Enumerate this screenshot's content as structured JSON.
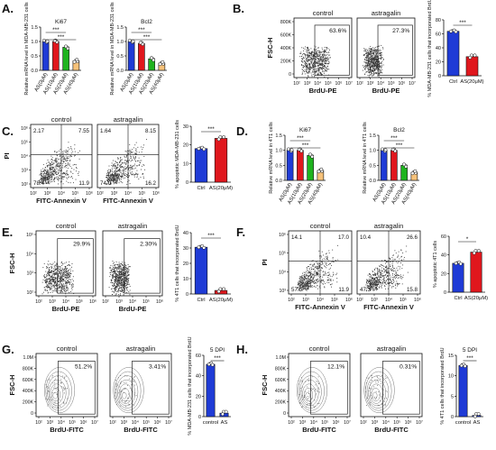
{
  "colors": {
    "blue": "#1f3bd6",
    "red": "#e0171d",
    "green": "#1fb31f",
    "orange": "#f7c27a",
    "black": "#111111",
    "box": "#555555"
  },
  "panels": {
    "A": {
      "letter": "A.",
      "charts": [
        {
          "type": "bar",
          "title": "Ki67",
          "ylabel": "Relative mRNA level in MDA-MB-231 cells",
          "ylim": [
            0,
            1.5
          ],
          "yticks": [
            "0.0",
            "0.5",
            "1.0",
            "1.5"
          ],
          "categories": [
            "AS(0μM)",
            "AS(10μM)",
            "AS(20μM)",
            "AS(40μM)"
          ],
          "values": [
            1.0,
            1.0,
            0.8,
            0.33
          ],
          "sig": [
            "***",
            "***"
          ]
        },
        {
          "type": "bar",
          "title": "Bcl2",
          "ylabel": "Relative mRNA level in MDA-MB-231 cells",
          "ylim": [
            0,
            1.5
          ],
          "yticks": [
            "0.0",
            "0.5",
            "1.0",
            "1.5"
          ],
          "categories": [
            "AS(0μM)",
            "AS(10μM)",
            "AS(20μM)",
            "AS(40μM)"
          ],
          "values": [
            1.0,
            0.93,
            0.4,
            0.25
          ],
          "sig": [
            "***",
            "***"
          ]
        }
      ]
    },
    "B": {
      "letter": "B.",
      "flow": {
        "ylabel": "FSC-H",
        "xlabel": "BrdU-PE",
        "yticks": [
          "800K",
          "600K",
          "400K",
          "200K",
          "0"
        ],
        "xticks": [
          "10²",
          "10³",
          "10⁴",
          "10⁵",
          "10⁶",
          "10⁷"
        ],
        "plots": [
          {
            "title": "control",
            "pct": "63.6%"
          },
          {
            "title": "astragalin",
            "pct": "27.3%"
          }
        ]
      },
      "bar": {
        "type": "bar",
        "ylabel": "% MDA-MB-231 cells that incorporated BrdU",
        "ylim": [
          0,
          80
        ],
        "yticks": [
          "0",
          "20",
          "40",
          "60",
          "80"
        ],
        "categories": [
          "Ctrl",
          "AS(20μM)"
        ],
        "values": [
          63.6,
          27.3
        ],
        "sig": [
          "***"
        ]
      }
    },
    "C": {
      "letter": "C.",
      "flow": {
        "ylabel": "PI",
        "xlabel": "FITC-Annexin V",
        "yticks": [
          "10⁶",
          "10⁵",
          "10⁴",
          "10³",
          "10²"
        ],
        "xticks": [
          "10²",
          "10³",
          "10⁴",
          "10⁵",
          "10⁶"
        ],
        "plots": [
          {
            "title": "control",
            "q": [
              "2.17",
              "7.55",
              "78.4",
              "11.9"
            ]
          },
          {
            "title": "astragalin",
            "q": [
              "1.64",
              "8.15",
              "74.0",
              "16.2"
            ]
          }
        ]
      },
      "bar": {
        "type": "bar",
        "ylabel": "% apoptotic MDA-MB-231 cells",
        "ylim": [
          0,
          30
        ],
        "yticks": [
          "0",
          "10",
          "20",
          "30"
        ],
        "categories": [
          "Ctrl",
          "AS(20μM)"
        ],
        "values": [
          18.0,
          23.5
        ],
        "sig": [
          "***"
        ]
      }
    },
    "D": {
      "letter": "D.",
      "charts": [
        {
          "type": "bar",
          "title": "Ki67",
          "ylabel": "Relative mRNA level in 4T1 cells",
          "ylim": [
            0,
            1.5
          ],
          "yticks": [
            "0.0",
            "0.5",
            "1.0",
            "1.5"
          ],
          "categories": [
            "AS(0μM)",
            "AS(10μM)",
            "AS(20μM)",
            "AS(40μM)"
          ],
          "values": [
            1.0,
            1.0,
            0.83,
            0.33
          ],
          "sig": [
            "***",
            "***"
          ]
        },
        {
          "type": "bar",
          "title": "Bcl2",
          "ylabel": "Relative mRNA level in 4T1 cells",
          "ylim": [
            0,
            1.5
          ],
          "yticks": [
            "0.0",
            "0.5",
            "1.0",
            "1.5"
          ],
          "categories": [
            "AS(0μM)",
            "AS(10μM)",
            "AS(20μM)",
            "AS(40μM)"
          ],
          "values": [
            1.0,
            1.0,
            0.5,
            0.27
          ],
          "sig": [
            "***",
            "***"
          ]
        }
      ]
    },
    "E": {
      "letter": "E.",
      "flow": {
        "ylabel": "FSC-H",
        "xlabel": "BrdU-PE",
        "yticks": [
          "10⁵",
          "10⁴",
          "10³",
          "10²"
        ],
        "xticks": [
          "10²",
          "10³",
          "10⁴",
          "10⁵",
          "10⁶"
        ],
        "plots": [
          {
            "title": "control",
            "pct": "29.9%"
          },
          {
            "title": "astragalin",
            "pct": "2.30%"
          }
        ]
      },
      "bar": {
        "type": "bar",
        "ylabel": "% 4T1 cells that incorporated BrdU",
        "ylim": [
          0,
          40
        ],
        "yticks": [
          "0",
          "10",
          "20",
          "30",
          "40"
        ],
        "categories": [
          "Ctrl",
          "AS(20μM)"
        ],
        "values": [
          30.5,
          2.3
        ],
        "sig": [
          "***"
        ]
      }
    },
    "F": {
      "letter": "F.",
      "flow": {
        "ylabel": "PI",
        "xlabel": "FITC-Annexin V",
        "yticks": [
          "10⁶",
          "10⁵",
          "10⁴",
          "10³"
        ],
        "xticks": [
          "10²",
          "10³",
          "10⁴",
          "10⁵",
          "10⁶"
        ],
        "plots": [
          {
            "title": "control",
            "q": [
              "14.1",
              "17.0",
              "57.0",
              "11.9"
            ]
          },
          {
            "title": "astragalin",
            "q": [
              "10.4",
              "26.6",
              "47.3",
              "15.8"
            ]
          }
        ]
      },
      "bar": {
        "type": "bar",
        "ylabel": "% apoptotic 4T1 cells",
        "ylim": [
          0,
          60
        ],
        "yticks": [
          "0",
          "20",
          "40",
          "60"
        ],
        "categories": [
          "Ctrl",
          "AS(20μM)"
        ],
        "values": [
          31.0,
          43.0
        ],
        "sig": [
          "*"
        ]
      }
    },
    "G": {
      "letter": "G.",
      "flow": {
        "ylabel": "FSC-H",
        "xlabel": "BrdU-FITC",
        "yticks": [
          "1.0M",
          "800K",
          "600K",
          "400K",
          "200K",
          "0"
        ],
        "xticks": [
          "10²",
          "10³",
          "10⁴",
          "10⁵",
          "10⁶",
          "10⁷"
        ],
        "plots": [
          {
            "title": "control",
            "pct": "51.2%"
          },
          {
            "title": "astragalin",
            "pct": "3.41%"
          }
        ]
      },
      "bar": {
        "type": "bar",
        "title": "5 DPI",
        "ylabel": "% MDA-MB-231 cells that incorporated BrdU",
        "ylim": [
          0,
          60
        ],
        "yticks": [
          "0",
          "20",
          "40",
          "60"
        ],
        "categories": [
          "control",
          "AS"
        ],
        "values": [
          51.2,
          3.4
        ],
        "sig": [
          "***"
        ]
      }
    },
    "H": {
      "letter": "H.",
      "flow": {
        "ylabel": "FSC-H",
        "xlabel": "BrdU-FITC",
        "yticks": [
          "1.0M",
          "800K",
          "600K",
          "400K",
          "200K",
          "0"
        ],
        "xticks": [
          "10²",
          "10³",
          "10⁴",
          "10⁵",
          "10⁶",
          "10⁷"
        ],
        "plots": [
          {
            "title": "control",
            "pct": "12.1%"
          },
          {
            "title": "astragalin",
            "pct": "0.31%"
          }
        ]
      },
      "bar": {
        "type": "bar",
        "title": "5 DPI",
        "ylabel": "% 4T1 cells that incorporated BrdU",
        "ylim": [
          0,
          15
        ],
        "yticks": [
          "0",
          "5",
          "10",
          "15"
        ],
        "categories": [
          "control",
          "AS"
        ],
        "values": [
          12.5,
          0.3
        ],
        "sig": [
          "***"
        ]
      }
    }
  },
  "chart_data": [
    {
      "panel": "A",
      "type": "bar",
      "title": "Ki67",
      "categories": [
        "AS(0μM)",
        "AS(10μM)",
        "AS(20μM)",
        "AS(40μM)"
      ],
      "values": [
        1.0,
        1.0,
        0.8,
        0.33
      ],
      "ylim": [
        0,
        1.5
      ]
    },
    {
      "panel": "A",
      "type": "bar",
      "title": "Bcl2",
      "categories": [
        "AS(0μM)",
        "AS(10μM)",
        "AS(20μM)",
        "AS(40μM)"
      ],
      "values": [
        1.0,
        0.93,
        0.4,
        0.25
      ],
      "ylim": [
        0,
        1.5
      ]
    },
    {
      "panel": "B",
      "type": "bar",
      "categories": [
        "Ctrl",
        "AS(20μM)"
      ],
      "values": [
        63.6,
        27.3
      ],
      "ylim": [
        0,
        80
      ]
    },
    {
      "panel": "C",
      "type": "bar",
      "categories": [
        "Ctrl",
        "AS(20μM)"
      ],
      "values": [
        18.0,
        23.5
      ],
      "ylim": [
        0,
        30
      ]
    },
    {
      "panel": "D",
      "type": "bar",
      "title": "Ki67",
      "categories": [
        "AS(0μM)",
        "AS(10μM)",
        "AS(20μM)",
        "AS(40μM)"
      ],
      "values": [
        1.0,
        1.0,
        0.83,
        0.33
      ],
      "ylim": [
        0,
        1.5
      ]
    },
    {
      "panel": "D",
      "type": "bar",
      "title": "Bcl2",
      "categories": [
        "AS(0μM)",
        "AS(10μM)",
        "AS(20μM)",
        "AS(40μM)"
      ],
      "values": [
        1.0,
        1.0,
        0.5,
        0.27
      ],
      "ylim": [
        0,
        1.5
      ]
    },
    {
      "panel": "E",
      "type": "bar",
      "categories": [
        "Ctrl",
        "AS(20μM)"
      ],
      "values": [
        30.5,
        2.3
      ],
      "ylim": [
        0,
        40
      ]
    },
    {
      "panel": "F",
      "type": "bar",
      "categories": [
        "Ctrl",
        "AS(20μM)"
      ],
      "values": [
        31.0,
        43.0
      ],
      "ylim": [
        0,
        60
      ]
    },
    {
      "panel": "G",
      "type": "bar",
      "title": "5 DPI",
      "categories": [
        "control",
        "AS"
      ],
      "values": [
        51.2,
        3.4
      ],
      "ylim": [
        0,
        60
      ]
    },
    {
      "panel": "H",
      "type": "bar",
      "title": "5 DPI",
      "categories": [
        "control",
        "AS"
      ],
      "values": [
        12.5,
        0.3
      ],
      "ylim": [
        0,
        15
      ]
    }
  ]
}
